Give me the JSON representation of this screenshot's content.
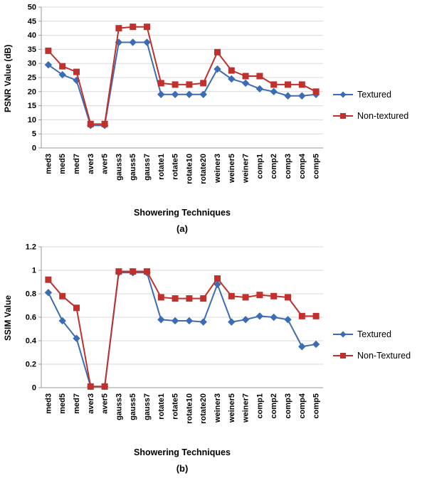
{
  "colors": {
    "textured": "#3C6DB4",
    "non_textured": "#C0302C",
    "gridline": "#D9D9D9",
    "axis": "#9A9A9A"
  },
  "chart_data": [
    {
      "type": "line",
      "id": "psnr-chart",
      "xlabel": "Showering Techniques",
      "ylabel": "PSNR Value (dB)",
      "sublabel": "(a)",
      "ylim": [
        0,
        50
      ],
      "ytick": 5,
      "grid": true,
      "legend_position": "right",
      "categories": [
        "med3",
        "med5",
        "med7",
        "aver3",
        "aver5",
        "gauss3",
        "gauss5",
        "gauss7",
        "rotate1",
        "rotate5",
        "rotate10",
        "rotate20",
        "weiner3",
        "weiner5",
        "weiner7",
        "comp1",
        "comp2",
        "comp3",
        "comp4",
        "comp5"
      ],
      "series": [
        {
          "name": "Textured",
          "marker": "diamond",
          "color": "#3C6DB4",
          "values": [
            29.5,
            26,
            24,
            8,
            8,
            37.5,
            37.5,
            37.5,
            19,
            19,
            19,
            19,
            28,
            24.5,
            23,
            21,
            20,
            18.5,
            18.5,
            19
          ]
        },
        {
          "name": "Non-textured",
          "marker": "square",
          "color": "#C0302C",
          "values": [
            34.5,
            29,
            27,
            8.5,
            8.5,
            42.5,
            43,
            43,
            23,
            22.5,
            22.5,
            23,
            34,
            27.5,
            25.5,
            25.5,
            22.5,
            22.5,
            22.5,
            20
          ]
        }
      ]
    },
    {
      "type": "line",
      "id": "ssim-chart",
      "xlabel": "Showering Techniques",
      "ylabel": "SSIM Value",
      "sublabel": "(b)",
      "ylim": [
        0,
        1.2
      ],
      "ytick": 0.2,
      "grid": true,
      "legend_position": "right",
      "categories": [
        "med3",
        "med5",
        "med7",
        "aver3",
        "aver5",
        "gauss3",
        "gauss5",
        "gauss7",
        "rotate1",
        "rotate5",
        "rotate10",
        "rotate20",
        "weiner3",
        "weiner5",
        "weiner7",
        "comp1",
        "comp2",
        "comp3",
        "comp4",
        "comp5"
      ],
      "series": [
        {
          "name": "Textured",
          "marker": "diamond",
          "color": "#3C6DB4",
          "values": [
            0.81,
            0.57,
            0.42,
            0.01,
            0.01,
            0.98,
            0.98,
            0.98,
            0.58,
            0.57,
            0.57,
            0.56,
            0.88,
            0.56,
            0.58,
            0.61,
            0.6,
            0.58,
            0.35,
            0.37
          ]
        },
        {
          "name": "Non-Textured",
          "marker": "square",
          "color": "#C0302C",
          "values": [
            0.92,
            0.78,
            0.68,
            0.01,
            0.01,
            0.99,
            0.99,
            0.99,
            0.77,
            0.76,
            0.76,
            0.76,
            0.93,
            0.78,
            0.77,
            0.79,
            0.78,
            0.77,
            0.61,
            0.61
          ]
        }
      ]
    }
  ]
}
